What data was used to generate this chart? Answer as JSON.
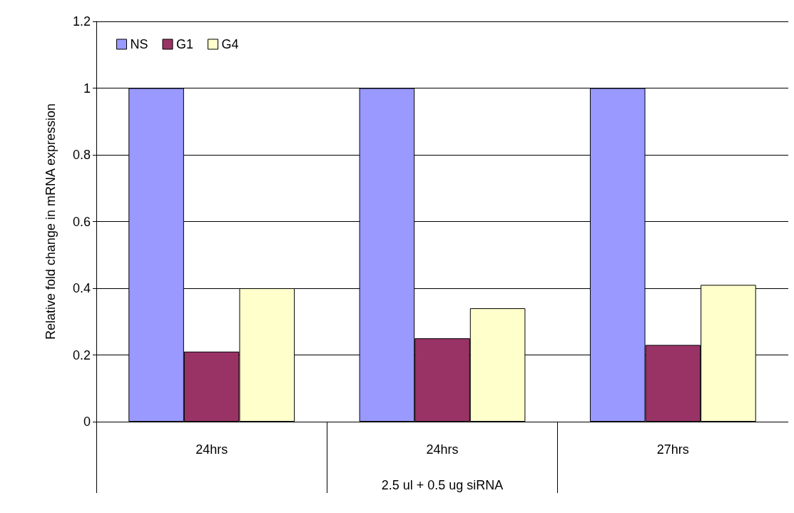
{
  "chart_data": {
    "type": "bar",
    "ylabel": "Relative fold change in mRNA expression",
    "xlabel": "2.5 ul + 0.5 ug siRNA",
    "categories": [
      "24hrs",
      "24hrs",
      "27hrs"
    ],
    "series": [
      {
        "name": "NS",
        "color": "#9999ff",
        "values": [
          1,
          1,
          1
        ]
      },
      {
        "name": "G1",
        "color": "#993366",
        "values": [
          0.21,
          0.25,
          0.23
        ]
      },
      {
        "name": "G4",
        "color": "#ffffcc",
        "values": [
          0.4,
          0.34,
          0.41
        ]
      }
    ],
    "ylim": [
      0,
      1.2
    ],
    "yticks": [
      0,
      0.2,
      0.4,
      0.6,
      0.8,
      1,
      1.2
    ],
    "grid": "y",
    "legend": "top left"
  }
}
